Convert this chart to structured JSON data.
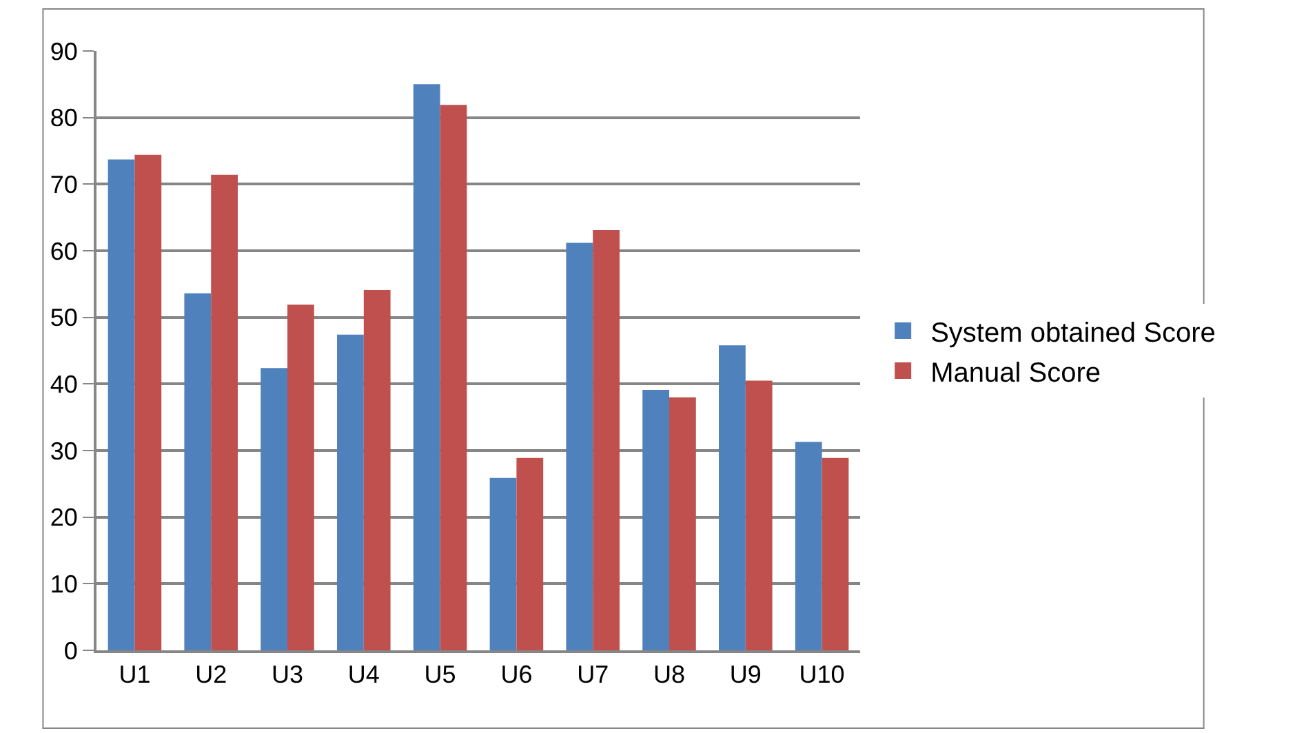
{
  "chart_data": {
    "type": "bar",
    "categories": [
      "U1",
      "U2",
      "U3",
      "U4",
      "U5",
      "U6",
      "U7",
      "U8",
      "U9",
      "U10"
    ],
    "series": [
      {
        "name": "System obtained Score",
        "color": "#4f81bd",
        "values": [
          73.7,
          53.6,
          42.4,
          47.4,
          85.0,
          25.9,
          61.2,
          39.1,
          45.8,
          31.3
        ]
      },
      {
        "name": "Manual Score",
        "color": "#c0504d",
        "values": [
          74.4,
          71.4,
          51.9,
          54.1,
          81.9,
          28.9,
          63.1,
          38.0,
          40.5,
          28.9
        ]
      }
    ],
    "ylim": [
      0,
      90
    ],
    "yticks": [
      0,
      10,
      20,
      30,
      40,
      50,
      60,
      70,
      80,
      90
    ],
    "grid": "y",
    "legend": "right"
  }
}
